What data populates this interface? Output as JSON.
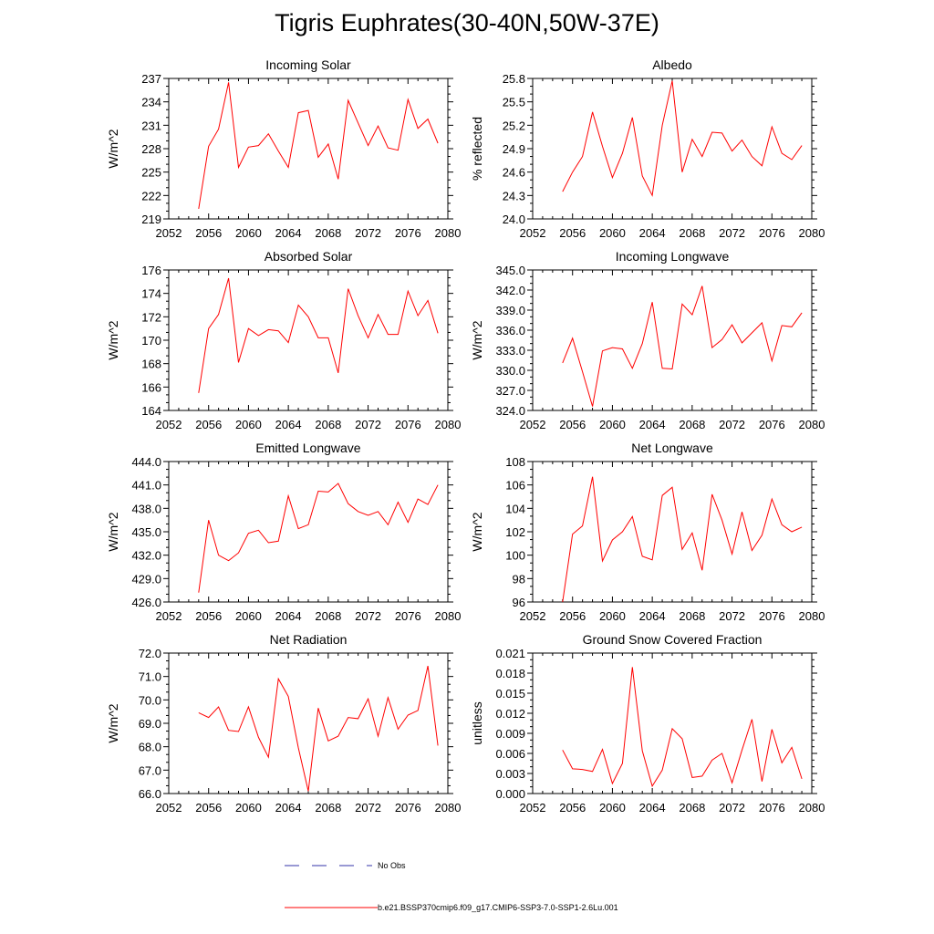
{
  "title": "Tigris Euphrates(30-40N,50W-37E)",
  "legend": {
    "obs_label": "No Obs",
    "model_label": "b.e21.BSSP370cmip6.f09_g17.CMIP6-SSP3-7.0-SSP1-2.6Lu.001",
    "obs_color": "#3333aa",
    "model_color": "#ff0000"
  },
  "chart_data": [
    {
      "type": "line",
      "title": "Incoming Solar",
      "ylabel": "W/m^2",
      "xlim": [
        2052,
        2080
      ],
      "xticks": [
        2052,
        2056,
        2060,
        2064,
        2068,
        2072,
        2076,
        2080
      ],
      "ylim": [
        219,
        237
      ],
      "yticks": [
        "219",
        "222",
        "225",
        "228",
        "231",
        "234",
        "237"
      ],
      "x": [
        2055,
        2056,
        2057,
        2058,
        2059,
        2060,
        2061,
        2062,
        2063,
        2064,
        2065,
        2066,
        2067,
        2068,
        2069,
        2070,
        2071,
        2072,
        2073,
        2074,
        2075,
        2076,
        2077,
        2078,
        2079
      ],
      "series": [
        {
          "values": [
            220.3,
            228.3,
            230.5,
            236.5,
            225.6,
            228.2,
            228.4,
            229.9,
            227.7,
            225.6,
            232.6,
            232.9,
            226.9,
            228.6,
            224.1,
            234.2,
            231.3,
            228.4,
            230.9,
            228.1,
            227.8,
            234.3,
            230.6,
            231.8,
            228.7
          ]
        }
      ]
    },
    {
      "type": "line",
      "title": "Albedo",
      "ylabel": "% reflected",
      "xlim": [
        2052,
        2080
      ],
      "xticks": [
        2052,
        2056,
        2060,
        2064,
        2068,
        2072,
        2076,
        2080
      ],
      "ylim": [
        24.0,
        25.8
      ],
      "yticks": [
        "24.0",
        "24.3",
        "24.6",
        "24.9",
        "25.2",
        "25.5",
        "25.8"
      ],
      "x": [
        2055,
        2056,
        2057,
        2058,
        2059,
        2060,
        2061,
        2062,
        2063,
        2064,
        2065,
        2066,
        2067,
        2068,
        2069,
        2070,
        2071,
        2072,
        2073,
        2074,
        2075,
        2076,
        2077,
        2078,
        2079
      ],
      "series": [
        {
          "values": [
            24.35,
            24.6,
            24.8,
            25.37,
            24.93,
            24.53,
            24.84,
            25.3,
            24.55,
            24.3,
            25.2,
            25.77,
            24.6,
            25.02,
            24.8,
            25.11,
            25.1,
            24.87,
            25.01,
            24.8,
            24.68,
            25.18,
            24.84,
            24.76,
            24.94
          ]
        }
      ]
    },
    {
      "type": "line",
      "title": "Absorbed Solar",
      "ylabel": "W/m^2",
      "xlim": [
        2052,
        2080
      ],
      "xticks": [
        2052,
        2056,
        2060,
        2064,
        2068,
        2072,
        2076,
        2080
      ],
      "ylim": [
        164,
        176
      ],
      "yticks": [
        "164",
        "166",
        "168",
        "170",
        "172",
        "174",
        "176"
      ],
      "x": [
        2055,
        2056,
        2057,
        2058,
        2059,
        2060,
        2061,
        2062,
        2063,
        2064,
        2065,
        2066,
        2067,
        2068,
        2069,
        2070,
        2071,
        2072,
        2073,
        2074,
        2075,
        2076,
        2077,
        2078,
        2079
      ],
      "series": [
        {
          "values": [
            165.5,
            171.0,
            172.2,
            175.3,
            168.1,
            171.0,
            170.4,
            170.9,
            170.8,
            169.8,
            173.0,
            172.0,
            170.2,
            170.2,
            167.2,
            174.4,
            172.1,
            170.2,
            172.2,
            170.5,
            170.5,
            174.2,
            172.1,
            173.4,
            170.6
          ]
        }
      ]
    },
    {
      "type": "line",
      "title": "Incoming Longwave",
      "ylabel": "W/m^2",
      "xlim": [
        2052,
        2080
      ],
      "xticks": [
        2052,
        2056,
        2060,
        2064,
        2068,
        2072,
        2076,
        2080
      ],
      "ylim": [
        324.0,
        345.0
      ],
      "yticks": [
        "324.0",
        "327.0",
        "330.0",
        "333.0",
        "336.0",
        "339.0",
        "342.0",
        "345.0"
      ],
      "x": [
        2055,
        2056,
        2057,
        2058,
        2059,
        2060,
        2061,
        2062,
        2063,
        2064,
        2065,
        2066,
        2067,
        2068,
        2069,
        2070,
        2071,
        2072,
        2073,
        2074,
        2075,
        2076,
        2077,
        2078,
        2079
      ],
      "series": [
        {
          "values": [
            331.1,
            334.8,
            329.8,
            324.6,
            332.9,
            333.4,
            333.2,
            330.3,
            334.0,
            340.2,
            330.3,
            330.2,
            339.9,
            338.3,
            342.6,
            333.4,
            334.6,
            336.8,
            334.1,
            335.6,
            337.1,
            331.4,
            336.7,
            336.5,
            338.6
          ]
        }
      ]
    },
    {
      "type": "line",
      "title": "Emitted Longwave",
      "ylabel": "W/m^2",
      "xlim": [
        2052,
        2080
      ],
      "xticks": [
        2052,
        2056,
        2060,
        2064,
        2068,
        2072,
        2076,
        2080
      ],
      "ylim": [
        426.0,
        444.0
      ],
      "yticks": [
        "426.0",
        "429.0",
        "432.0",
        "435.0",
        "438.0",
        "441.0",
        "444.0"
      ],
      "x": [
        2055,
        2056,
        2057,
        2058,
        2059,
        2060,
        2061,
        2062,
        2063,
        2064,
        2065,
        2066,
        2067,
        2068,
        2069,
        2070,
        2071,
        2072,
        2073,
        2074,
        2075,
        2076,
        2077,
        2078,
        2079
      ],
      "series": [
        {
          "values": [
            427.2,
            436.5,
            432.0,
            431.3,
            432.3,
            434.8,
            435.2,
            433.6,
            433.8,
            439.6,
            435.4,
            435.9,
            440.2,
            440.1,
            441.2,
            438.6,
            437.6,
            437.1,
            437.6,
            435.9,
            438.8,
            436.2,
            439.2,
            438.5,
            441.0
          ]
        }
      ]
    },
    {
      "type": "line",
      "title": "Net Longwave",
      "ylabel": "W/m^2",
      "xlim": [
        2052,
        2080
      ],
      "xticks": [
        2052,
        2056,
        2060,
        2064,
        2068,
        2072,
        2076,
        2080
      ],
      "ylim": [
        96,
        108
      ],
      "yticks": [
        "96",
        "98",
        "100",
        "102",
        "104",
        "106",
        "108"
      ],
      "x": [
        2055,
        2056,
        2057,
        2058,
        2059,
        2060,
        2061,
        2062,
        2063,
        2064,
        2065,
        2066,
        2067,
        2068,
        2069,
        2070,
        2071,
        2072,
        2073,
        2074,
        2075,
        2076,
        2077,
        2078,
        2079
      ],
      "series": [
        {
          "values": [
            96.0,
            101.8,
            102.5,
            106.7,
            99.5,
            101.3,
            102.0,
            103.3,
            99.9,
            99.6,
            105.1,
            105.8,
            100.5,
            101.9,
            98.7,
            105.2,
            103.0,
            100.1,
            103.7,
            100.4,
            101.7,
            104.8,
            102.6,
            102.0,
            102.4
          ]
        }
      ]
    },
    {
      "type": "line",
      "title": "Net Radiation",
      "ylabel": "W/m^2",
      "xlim": [
        2052,
        2080
      ],
      "xticks": [
        2052,
        2056,
        2060,
        2064,
        2068,
        2072,
        2076,
        2080
      ],
      "ylim": [
        66.0,
        72.0
      ],
      "yticks": [
        "66.0",
        "67.0",
        "68.0",
        "69.0",
        "70.0",
        "71.0",
        "72.0"
      ],
      "x": [
        2055,
        2056,
        2057,
        2058,
        2059,
        2060,
        2061,
        2062,
        2063,
        2064,
        2065,
        2066,
        2067,
        2068,
        2069,
        2070,
        2071,
        2072,
        2073,
        2074,
        2075,
        2076,
        2077,
        2078,
        2079
      ],
      "series": [
        {
          "values": [
            69.45,
            69.25,
            69.7,
            68.7,
            68.65,
            69.7,
            68.4,
            67.55,
            70.9,
            70.15,
            67.95,
            66.1,
            69.65,
            68.25,
            68.45,
            69.25,
            69.2,
            70.05,
            68.45,
            70.1,
            68.75,
            69.35,
            69.55,
            71.45,
            68.05
          ]
        }
      ]
    },
    {
      "type": "line",
      "title": "Ground Snow Covered Fraction",
      "ylabel": "unitless",
      "xlim": [
        2052,
        2080
      ],
      "xticks": [
        2052,
        2056,
        2060,
        2064,
        2068,
        2072,
        2076,
        2080
      ],
      "ylim": [
        0.0,
        0.021
      ],
      "yticks": [
        "0.000",
        "0.003",
        "0.006",
        "0.009",
        "0.012",
        "0.015",
        "0.018",
        "0.021"
      ],
      "x": [
        2055,
        2056,
        2057,
        2058,
        2059,
        2060,
        2061,
        2062,
        2063,
        2064,
        2065,
        2066,
        2067,
        2068,
        2069,
        2070,
        2071,
        2072,
        2073,
        2074,
        2075,
        2076,
        2077,
        2078,
        2079
      ],
      "series": [
        {
          "values": [
            0.0065,
            0.0037,
            0.0036,
            0.0033,
            0.0066,
            0.0015,
            0.0045,
            0.0189,
            0.0064,
            0.0011,
            0.0035,
            0.0097,
            0.0082,
            0.0024,
            0.0026,
            0.005,
            0.006,
            0.0016,
            0.0065,
            0.0111,
            0.0018,
            0.0096,
            0.0046,
            0.0069,
            0.0022
          ]
        }
      ]
    }
  ]
}
